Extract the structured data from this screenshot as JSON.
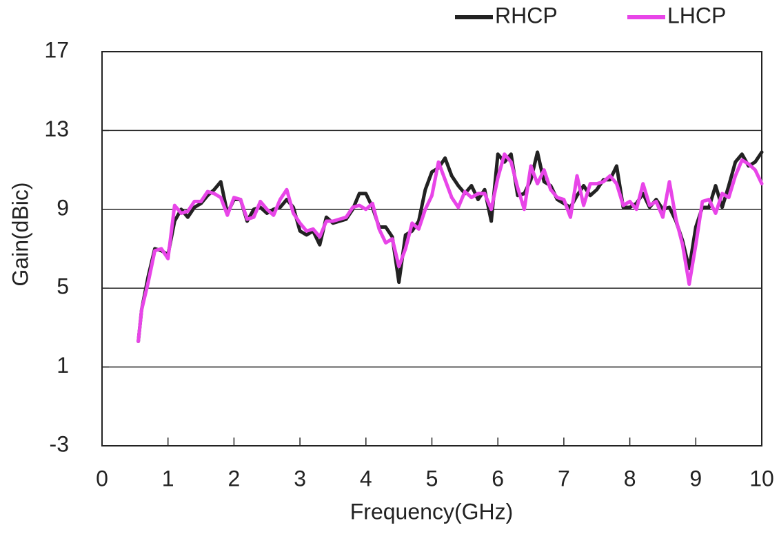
{
  "chart_data": {
    "type": "line",
    "x": [
      0.55,
      0.6,
      0.7,
      0.8,
      0.9,
      1.0,
      1.1,
      1.2,
      1.3,
      1.4,
      1.5,
      1.6,
      1.7,
      1.8,
      1.9,
      2.0,
      2.1,
      2.2,
      2.3,
      2.4,
      2.5,
      2.6,
      2.7,
      2.8,
      2.9,
      3.0,
      3.1,
      3.2,
      3.3,
      3.4,
      3.5,
      3.6,
      3.7,
      3.8,
      3.9,
      4.0,
      4.1,
      4.2,
      4.3,
      4.4,
      4.5,
      4.6,
      4.7,
      4.8,
      4.9,
      5.0,
      5.1,
      5.2,
      5.3,
      5.4,
      5.5,
      5.6,
      5.7,
      5.8,
      5.9,
      6.0,
      6.1,
      6.2,
      6.3,
      6.4,
      6.5,
      6.6,
      6.7,
      6.8,
      6.9,
      7.0,
      7.1,
      7.2,
      7.3,
      7.4,
      7.5,
      7.6,
      7.7,
      7.8,
      7.9,
      8.0,
      8.1,
      8.2,
      8.3,
      8.4,
      8.5,
      8.6,
      8.7,
      8.8,
      8.9,
      9.0,
      9.1,
      9.2,
      9.3,
      9.4,
      9.5,
      9.6,
      9.7,
      9.8,
      9.9,
      10.0
    ],
    "series": [
      {
        "name": "RHCP",
        "color": "#222222",
        "values": [
          2.3,
          3.9,
          5.6,
          7.0,
          6.9,
          6.7,
          8.4,
          9.0,
          8.6,
          9.1,
          9.3,
          9.7,
          10.0,
          10.4,
          8.8,
          9.5,
          9.5,
          8.4,
          9.0,
          9.1,
          8.8,
          9.0,
          9.1,
          9.5,
          9.1,
          7.9,
          7.7,
          7.9,
          7.2,
          8.6,
          8.3,
          8.4,
          8.5,
          9.0,
          9.8,
          9.8,
          9.1,
          8.1,
          8.1,
          7.6,
          5.3,
          7.7,
          7.9,
          8.4,
          10.0,
          10.9,
          11.1,
          11.6,
          10.7,
          10.2,
          9.8,
          10.2,
          9.5,
          10.0,
          8.4,
          11.8,
          11.4,
          11.8,
          9.7,
          9.8,
          10.5,
          11.9,
          10.4,
          10.2,
          9.5,
          9.3,
          9.1,
          9.7,
          10.2,
          9.7,
          10.0,
          10.5,
          10.5,
          11.2,
          9.1,
          9.1,
          9.3,
          9.8,
          9.1,
          9.5,
          9.0,
          9.1,
          8.4,
          7.4,
          6.0,
          8.1,
          9.1,
          9.1,
          10.2,
          9.1,
          10.2,
          11.4,
          11.8,
          11.2,
          11.4,
          11.9
        ]
      },
      {
        "name": "LHCP",
        "color": "#e845e8",
        "values": [
          2.3,
          3.9,
          5.3,
          6.9,
          7.0,
          6.5,
          9.2,
          8.8,
          8.9,
          9.4,
          9.4,
          9.9,
          9.8,
          9.6,
          8.7,
          9.6,
          9.5,
          8.5,
          8.6,
          9.4,
          9.0,
          8.7,
          9.5,
          10.0,
          8.8,
          8.3,
          7.9,
          8.0,
          7.6,
          8.4,
          8.4,
          8.5,
          8.6,
          9.1,
          9.2,
          9.0,
          9.3,
          8.0,
          7.3,
          7.5,
          6.1,
          7.0,
          8.3,
          8.0,
          9.0,
          9.7,
          11.4,
          10.5,
          9.6,
          9.1,
          9.9,
          9.6,
          9.8,
          9.8,
          9.0,
          10.6,
          11.8,
          11.4,
          10.1,
          9.0,
          11.2,
          10.3,
          11.0,
          10.0,
          9.6,
          9.5,
          8.6,
          10.7,
          9.2,
          10.3,
          10.3,
          10.4,
          10.7,
          10.3,
          9.2,
          9.4,
          9.0,
          10.3,
          9.2,
          9.4,
          8.6,
          10.4,
          8.5,
          7.2,
          5.2,
          7.2,
          9.4,
          9.5,
          8.8,
          9.8,
          9.6,
          10.7,
          11.5,
          11.3,
          11.0,
          10.3
        ]
      }
    ],
    "xlabel": "Frequency(GHz)",
    "ylabel": "Gain(dBic)",
    "xlim": [
      0,
      10
    ],
    "xticks": [
      0,
      1,
      2,
      3,
      4,
      5,
      6,
      7,
      8,
      9,
      10
    ],
    "ylim": [
      -3,
      17
    ],
    "yticks": [
      -3,
      1,
      5,
      9,
      13,
      17
    ],
    "grid": true,
    "legend": "top-right"
  }
}
